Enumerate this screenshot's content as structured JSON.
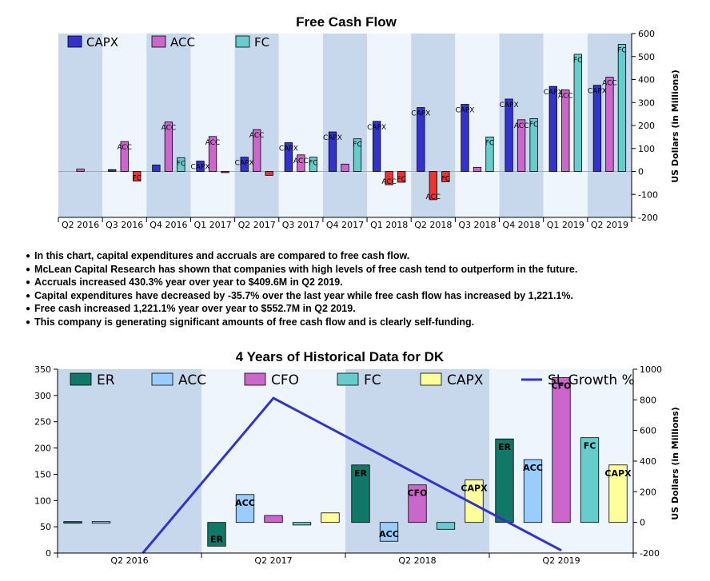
{
  "notes": [
    "In this chart, capital expenditures and accruals are compared to free cash flow.",
    "McLean Capital Research has shown that companies with high levels of free cash tend to outperform in the future.",
    "Accruals increased 430.3% year over year to $409.6M in Q2 2019.",
    "Capital expenditures have decreased by -35.7% over the last year while free cash flow has increased by 1,221.1%.",
    "Free cash increased 1,221.1% year over year to $552.7M in Q2 2019.",
    "This company is generating significant amounts of free cash flow and is clearly self-funding."
  ],
  "colors": {
    "capx": "#3333cc",
    "acc": "#cc66cc",
    "fc": "#66cccc",
    "neg": "#ee3333",
    "er": "#117766",
    "acc2": "#99ccff",
    "cfo": "#cc66cc",
    "fc2": "#66cccc",
    "capx2": "#ffff99",
    "line": "#3333cc",
    "band_dark": "#c8d8ec",
    "band_light": "#eef5fd"
  },
  "chart_data": [
    {
      "type": "bar",
      "title": "Free Cash Flow",
      "ylabel": "US Dollars (in Millions)",
      "ylim": [
        -200,
        600
      ],
      "yticks": [
        "600",
        "500",
        "400",
        "300",
        "200",
        "100",
        "0",
        "-100",
        "-200"
      ],
      "legend_position": "top-left",
      "categories": [
        "Q2 2016",
        "Q3 2016",
        "Q4 2016",
        "Q1 2017",
        "Q2 2017",
        "Q3 2017",
        "Q4 2017",
        "Q1 2018",
        "Q2 2018",
        "Q3 2018",
        "Q4 2018",
        "Q1 2019",
        "Q2 2019"
      ],
      "series": [
        {
          "name": "CAPX",
          "key": "capx",
          "values": [
            0,
            8,
            28,
            45,
            62,
            125,
            172,
            218,
            278,
            292,
            315,
            370,
            375
          ]
        },
        {
          "name": "ACC",
          "key": "acc",
          "values": [
            10,
            130,
            215,
            152,
            182,
            72,
            32,
            -58,
            -123,
            18,
            225,
            355,
            410
          ]
        },
        {
          "name": "FC",
          "key": "fc",
          "values": [
            0,
            -42,
            60,
            -3,
            -17,
            62,
            142,
            -47,
            -45,
            150,
            230,
            510,
            553
          ]
        }
      ],
      "bar_labels": [
        {
          "series": 1,
          "index": 1,
          "text": "ACC"
        },
        {
          "series": 2,
          "index": 1,
          "text": "FC"
        },
        {
          "series": 1,
          "index": 2,
          "text": "ACC"
        },
        {
          "series": 2,
          "index": 2,
          "text": "FC"
        },
        {
          "series": 0,
          "index": 3,
          "text": "CAPX"
        },
        {
          "series": 1,
          "index": 3,
          "text": "ACC"
        },
        {
          "series": 0,
          "index": 4,
          "text": "CAPX"
        },
        {
          "series": 1,
          "index": 4,
          "text": "ACC"
        },
        {
          "series": 0,
          "index": 5,
          "text": "CAPX"
        },
        {
          "series": 1,
          "index": 5,
          "text": "ACC"
        },
        {
          "series": 2,
          "index": 5,
          "text": "FC"
        },
        {
          "series": 0,
          "index": 6,
          "text": "CAPX"
        },
        {
          "series": 2,
          "index": 6,
          "text": "FC"
        },
        {
          "series": 0,
          "index": 7,
          "text": "CAPX"
        },
        {
          "series": 1,
          "index": 7,
          "text": "ACC"
        },
        {
          "series": 2,
          "index": 7,
          "text": "FC"
        },
        {
          "series": 0,
          "index": 8,
          "text": "CAPX"
        },
        {
          "series": 1,
          "index": 8,
          "text": "ACC"
        },
        {
          "series": 2,
          "index": 8,
          "text": "FC"
        },
        {
          "series": 0,
          "index": 9,
          "text": "CAPX"
        },
        {
          "series": 2,
          "index": 9,
          "text": "FC"
        },
        {
          "series": 0,
          "index": 10,
          "text": "CAPX"
        },
        {
          "series": 1,
          "index": 10,
          "text": "ACC"
        },
        {
          "series": 2,
          "index": 10,
          "text": "FC"
        },
        {
          "series": 0,
          "index": 11,
          "text": "CAPX"
        },
        {
          "series": 1,
          "index": 11,
          "text": "ACC"
        },
        {
          "series": 2,
          "index": 11,
          "text": "FC"
        },
        {
          "series": 0,
          "index": 12,
          "text": "CAPX"
        },
        {
          "series": 1,
          "index": 12,
          "text": "ACC"
        },
        {
          "series": 2,
          "index": 12,
          "text": "FC"
        }
      ]
    },
    {
      "type": "bar",
      "title": "4 Years of Historical Data for DK",
      "ylabel": "US Dollars (in Millions)",
      "ylim_left": [
        0,
        350
      ],
      "yticks_left": [
        "350",
        "300",
        "250",
        "200",
        "150",
        "100",
        "50",
        "0"
      ],
      "ylim_right": [
        -200,
        1000
      ],
      "yticks_right": [
        "1000",
        "800",
        "600",
        "400",
        "200",
        "0",
        "-200"
      ],
      "legend_position": "top",
      "categories": [
        "Q2 2016",
        "Q2 2017",
        "Q2 2018",
        "Q2 2019"
      ],
      "series": [
        {
          "name": "ER",
          "key": "er",
          "values": [
            -5,
            -155,
            375,
            545
          ]
        },
        {
          "name": "ACC",
          "key": "acc2",
          "values": [
            0,
            182,
            -123,
            410
          ]
        },
        {
          "name": "CFO",
          "key": "cfo",
          "values": [
            -5,
            45,
            245,
            945
          ]
        },
        {
          "name": "FC",
          "key": "fc2",
          "values": [
            0,
            -17,
            -45,
            553
          ]
        },
        {
          "name": "CAPX",
          "key": "capx2",
          "values": [
            0,
            62,
            278,
            375
          ]
        }
      ],
      "line_series": {
        "name": "SL Growth %",
        "key": "line",
        "points": [
          [
            0.0,
            -30
          ],
          [
            1.0,
            295
          ],
          [
            3.0,
            5
          ]
        ]
      },
      "bar_labels": [
        {
          "series": 0,
          "index": 1,
          "text": "ER"
        },
        {
          "series": 1,
          "index": 1,
          "text": "ACC"
        },
        {
          "series": 0,
          "index": 2,
          "text": "ER"
        },
        {
          "series": 1,
          "index": 2,
          "text": "ACC"
        },
        {
          "series": 2,
          "index": 2,
          "text": "CFO"
        },
        {
          "series": 4,
          "index": 2,
          "text": "CAPX"
        },
        {
          "series": 0,
          "index": 3,
          "text": "ER"
        },
        {
          "series": 1,
          "index": 3,
          "text": "ACC"
        },
        {
          "series": 2,
          "index": 3,
          "text": "CFO"
        },
        {
          "series": 3,
          "index": 3,
          "text": "FC"
        },
        {
          "series": 4,
          "index": 3,
          "text": "CAPX"
        }
      ]
    }
  ]
}
